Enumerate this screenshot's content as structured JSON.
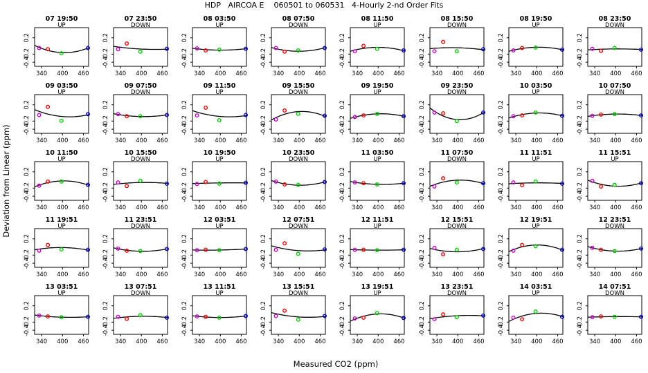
{
  "title": "HDP   AIRCOA E    060501 to 060531   4-Hourly 2-nd Order Fits",
  "xlabel": "Measured CO2 (ppm)",
  "ylabel": "Deviation from Linear (ppm)",
  "x_ticks": [
    "340",
    "400",
    "460"
  ],
  "y_ticks": [
    "0.2",
    "-0.2",
    "-0.4"
  ],
  "colors": {
    "std1": "#cc00cc",
    "std2": "#ff0000",
    "std3": "#00cc00",
    "std4": "#0000cc",
    "fit": "#000000",
    "frame": "#000000"
  },
  "chart_data": {
    "type": "scatter",
    "xlim": [
      320,
      475
    ],
    "ylim": [
      -0.5,
      0.45
    ],
    "standards_x": [
      333,
      358,
      397,
      473
    ],
    "grid": false,
    "panels": [
      {
        "label": "07 19:50",
        "dir": "UP",
        "pts": [
          -0.05,
          -0.08,
          -0.18,
          -0.05
        ]
      },
      {
        "label": "07 23:50",
        "dir": "DOWN",
        "pts": [
          -0.08,
          0.06,
          -0.14,
          -0.07
        ]
      },
      {
        "label": "08 03:50",
        "dir": "UP",
        "pts": [
          -0.06,
          -0.11,
          -0.09,
          -0.07
        ]
      },
      {
        "label": "08 07:50",
        "dir": "DOWN",
        "pts": [
          -0.05,
          -0.14,
          -0.11,
          -0.05
        ]
      },
      {
        "label": "08 11:50",
        "dir": "UP",
        "pts": [
          -0.13,
          0.0,
          -0.07,
          -0.11
        ]
      },
      {
        "label": "08 15:50",
        "dir": "DOWN",
        "pts": [
          -0.13,
          0.1,
          -0.13,
          -0.08
        ]
      },
      {
        "label": "08 19:50",
        "dir": "UP",
        "pts": [
          -0.11,
          -0.05,
          -0.04,
          -0.09
        ]
      },
      {
        "label": "08 23:50",
        "dir": "DOWN",
        "pts": [
          -0.07,
          -0.12,
          -0.05,
          -0.09
        ]
      },
      {
        "label": "09 03:50",
        "dir": "UP",
        "pts": [
          -0.05,
          0.15,
          -0.19,
          -0.03
        ]
      },
      {
        "label": "09 07:50",
        "dir": "DOWN",
        "pts": [
          -0.03,
          -0.08,
          -0.08,
          -0.05
        ]
      },
      {
        "label": "09 11:50",
        "dir": "UP",
        "pts": [
          -0.06,
          0.13,
          -0.18,
          -0.05
        ]
      },
      {
        "label": "09 15:50",
        "dir": "DOWN",
        "pts": [
          -0.16,
          0.06,
          -0.02,
          -0.07
        ]
      },
      {
        "label": "09 19:50",
        "dir": "UP",
        "pts": [
          -0.1,
          -0.06,
          -0.02,
          -0.08
        ]
      },
      {
        "label": "09 23:50",
        "dir": "DOWN",
        "pts": [
          0.01,
          -0.01,
          -0.2,
          0.01
        ]
      },
      {
        "label": "10 03:50",
        "dir": "UP",
        "pts": [
          -0.08,
          -0.06,
          0.01,
          -0.07
        ]
      },
      {
        "label": "10 07:50",
        "dir": "DOWN",
        "pts": [
          -0.07,
          -0.04,
          -0.03,
          -0.06
        ]
      },
      {
        "label": "10 11:50",
        "dir": "UP",
        "pts": [
          -0.14,
          -0.04,
          -0.04,
          -0.12
        ]
      },
      {
        "label": "10 15:50",
        "dir": "DOWN",
        "pts": [
          -0.06,
          -0.15,
          -0.02,
          -0.09
        ]
      },
      {
        "label": "10 19:50",
        "dir": "UP",
        "pts": [
          -0.1,
          -0.05,
          -0.09,
          -0.07
        ]
      },
      {
        "label": "10 23:50",
        "dir": "DOWN",
        "pts": [
          -0.04,
          -0.11,
          -0.12,
          -0.05
        ]
      },
      {
        "label": "11 03:50",
        "dir": "UP",
        "pts": [
          -0.06,
          -0.08,
          -0.11,
          -0.08
        ]
      },
      {
        "label": "11 07:50",
        "dir": "DOWN",
        "pts": [
          -0.16,
          0.04,
          -0.06,
          -0.08
        ]
      },
      {
        "label": "11 11:51",
        "dir": "UP",
        "pts": [
          -0.06,
          -0.13,
          -0.04,
          -0.09
        ]
      },
      {
        "label": "11 15:51",
        "dir": "UP",
        "pts": [
          -0.02,
          -0.16,
          -0.12,
          -0.08
        ]
      },
      {
        "label": "11 19:51",
        "dir": "UP",
        "pts": [
          -0.09,
          0.05,
          -0.06,
          -0.07
        ]
      },
      {
        "label": "11 23:51",
        "dir": "DOWN",
        "pts": [
          -0.04,
          -0.09,
          -0.1,
          -0.05
        ]
      },
      {
        "label": "12 03:51",
        "dir": "UP",
        "pts": [
          -0.08,
          -0.07,
          -0.08,
          -0.05
        ]
      },
      {
        "label": "12 07:51",
        "dir": "DOWN",
        "pts": [
          -0.07,
          0.09,
          -0.17,
          -0.06
        ]
      },
      {
        "label": "12 11:51",
        "dir": "UP",
        "pts": [
          -0.07,
          -0.07,
          -0.08,
          -0.07
        ]
      },
      {
        "label": "12 15:51",
        "dir": "DOWN",
        "pts": [
          -0.02,
          -0.18,
          -0.07,
          -0.05
        ]
      },
      {
        "label": "12 19:51",
        "dir": "UP",
        "pts": [
          -0.09,
          0.05,
          0.02,
          -0.07
        ]
      },
      {
        "label": "12 23:51",
        "dir": "DOWN",
        "pts": [
          -0.02,
          -0.07,
          -0.1,
          -0.04
        ]
      },
      {
        "label": "13 03:51",
        "dir": "UP",
        "pts": [
          -0.04,
          -0.06,
          -0.08,
          -0.07
        ]
      },
      {
        "label": "13 07:51",
        "dir": "DOWN",
        "pts": [
          -0.07,
          -0.12,
          -0.03,
          -0.09
        ]
      },
      {
        "label": "13 11:51",
        "dir": "UP",
        "pts": [
          -0.06,
          -0.07,
          -0.09,
          -0.05
        ]
      },
      {
        "label": "13 15:51",
        "dir": "DOWN",
        "pts": [
          -0.05,
          0.08,
          -0.14,
          -0.05
        ]
      },
      {
        "label": "13 19:51",
        "dir": "UP",
        "pts": [
          -0.11,
          -0.09,
          0.02,
          -0.1
        ]
      },
      {
        "label": "13 23:51",
        "dir": "DOWN",
        "pts": [
          -0.13,
          -0.01,
          -0.08,
          -0.04
        ]
      },
      {
        "label": "14 03:51",
        "dir": "UP",
        "pts": [
          -0.09,
          -0.13,
          0.06,
          -0.07
        ]
      },
      {
        "label": "14 07:51",
        "dir": "DOWN",
        "pts": [
          -0.08,
          -0.06,
          -0.07,
          -0.07
        ]
      }
    ]
  }
}
